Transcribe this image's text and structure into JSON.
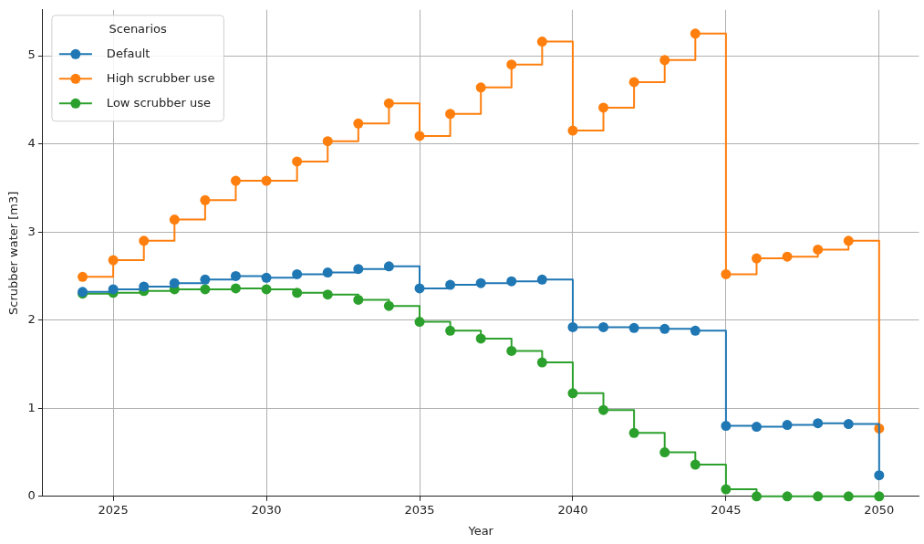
{
  "chart_data": {
    "type": "step",
    "xlabel": "Year",
    "ylabel": "Scrubber water [m3]",
    "legend_title": "Scenarios",
    "legend": "top left",
    "grid": true,
    "marker": "circle",
    "line_style": "solid",
    "x": [
      2024,
      2025,
      2026,
      2027,
      2028,
      2029,
      2030,
      2031,
      2032,
      2033,
      2034,
      2035,
      2036,
      2037,
      2038,
      2039,
      2040,
      2041,
      2042,
      2043,
      2044,
      2045,
      2046,
      2047,
      2048,
      2049,
      2050
    ],
    "xlim": [
      2022.7,
      2051.3
    ],
    "xticks": [
      2025,
      2030,
      2035,
      2040,
      2045,
      2050
    ],
    "ylim": [
      0,
      5.52
    ],
    "yticks": [
      0,
      1,
      2,
      3,
      4,
      5
    ],
    "series": [
      {
        "name": "Default",
        "color": "#1f77b4",
        "values": [
          2.32,
          2.35,
          2.38,
          2.42,
          2.46,
          2.5,
          2.48,
          2.52,
          2.54,
          2.58,
          2.61,
          2.36,
          2.4,
          2.42,
          2.44,
          2.46,
          1.92,
          1.92,
          1.91,
          1.9,
          1.88,
          0.8,
          0.79,
          0.81,
          0.83,
          0.82,
          0.24
        ]
      },
      {
        "name": "High scrubber use",
        "color": "#ff7f0e",
        "values": [
          2.49,
          2.68,
          2.9,
          3.14,
          3.36,
          3.58,
          3.58,
          3.8,
          4.03,
          4.23,
          4.46,
          4.09,
          4.34,
          4.64,
          4.9,
          5.16,
          4.15,
          4.41,
          4.7,
          4.95,
          5.25,
          2.52,
          2.7,
          2.72,
          2.8,
          2.9,
          0.77
        ]
      },
      {
        "name": "Low scrubber use",
        "color": "#2ca02c",
        "values": [
          2.3,
          2.31,
          2.33,
          2.35,
          2.35,
          2.36,
          2.35,
          2.31,
          2.29,
          2.23,
          2.16,
          1.98,
          1.88,
          1.79,
          1.65,
          1.52,
          1.17,
          0.98,
          0.72,
          0.5,
          0.36,
          0.08,
          0,
          0,
          0,
          0,
          0
        ]
      }
    ]
  }
}
